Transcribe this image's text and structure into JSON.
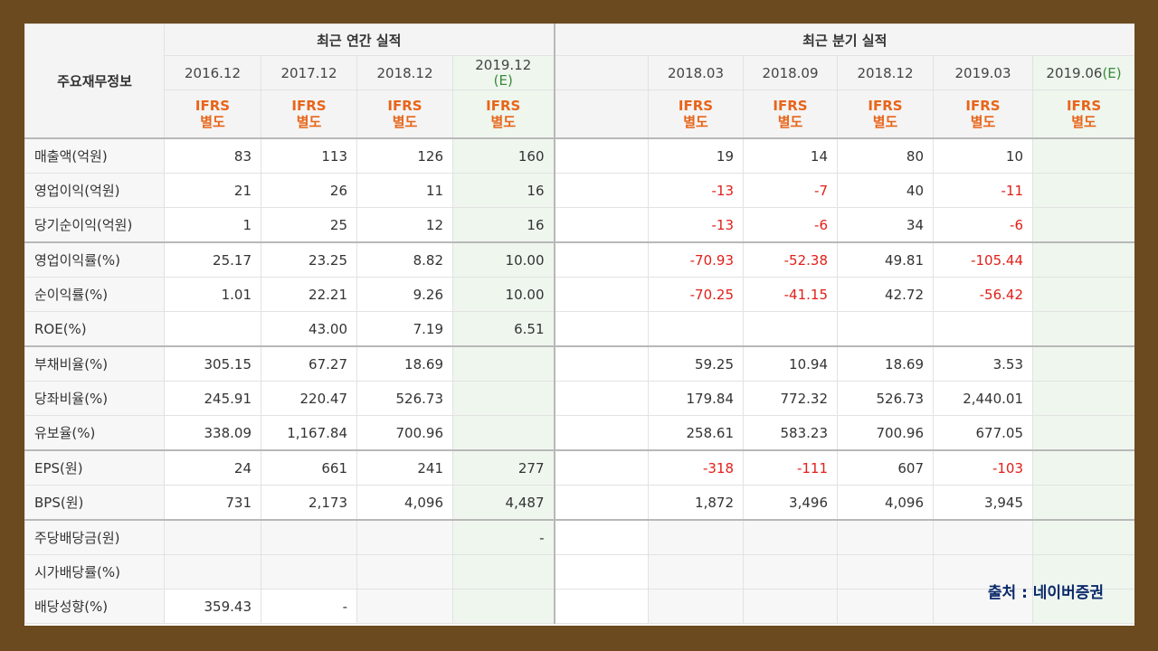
{
  "corner_label": "주요재무정보",
  "annual_group_label": "최근 연간 실적",
  "quarter_group_label": "최근 분기 실적",
  "annual_dates": [
    "2016.12",
    "2017.12",
    "2018.12",
    "2019.12"
  ],
  "annual_estimate_tag": "(E)",
  "quarter_dates": [
    "2018.03",
    "2018.09",
    "2018.12",
    "2019.03",
    "2019.06"
  ],
  "quarter_estimate_tag": "(E)",
  "ifrs_line1": "IFRS",
  "ifrs_line2": "별도",
  "rows": [
    {
      "label": "매출액(억원)",
      "annual": [
        "83",
        "113",
        "126",
        "160"
      ],
      "quarter": [
        "19",
        "14",
        "80",
        "10",
        ""
      ]
    },
    {
      "label": "영업이익(억원)",
      "annual": [
        "21",
        "26",
        "11",
        "16"
      ],
      "quarter": [
        "-13",
        "-7",
        "40",
        "-11",
        ""
      ]
    },
    {
      "label": "당기순이익(억원)",
      "annual": [
        "1",
        "25",
        "12",
        "16"
      ],
      "quarter": [
        "-13",
        "-6",
        "34",
        "-6",
        ""
      ]
    },
    {
      "label": "영업이익률(%)",
      "annual": [
        "25.17",
        "23.25",
        "8.82",
        "10.00"
      ],
      "quarter": [
        "-70.93",
        "-52.38",
        "49.81",
        "-105.44",
        ""
      ]
    },
    {
      "label": "순이익률(%)",
      "annual": [
        "1.01",
        "22.21",
        "9.26",
        "10.00"
      ],
      "quarter": [
        "-70.25",
        "-41.15",
        "42.72",
        "-56.42",
        ""
      ]
    },
    {
      "label": "ROE(%)",
      "annual": [
        "",
        "43.00",
        "7.19",
        "6.51"
      ],
      "quarter": [
        "",
        "",
        "",
        "",
        ""
      ]
    },
    {
      "label": "부채비율(%)",
      "annual": [
        "305.15",
        "67.27",
        "18.69",
        ""
      ],
      "quarter": [
        "59.25",
        "10.94",
        "18.69",
        "3.53",
        ""
      ]
    },
    {
      "label": "당좌비율(%)",
      "annual": [
        "245.91",
        "220.47",
        "526.73",
        ""
      ],
      "quarter": [
        "179.84",
        "772.32",
        "526.73",
        "2,440.01",
        ""
      ]
    },
    {
      "label": "유보율(%)",
      "annual": [
        "338.09",
        "1,167.84",
        "700.96",
        ""
      ],
      "quarter": [
        "258.61",
        "583.23",
        "700.96",
        "677.05",
        ""
      ]
    },
    {
      "label": "EPS(원)",
      "annual": [
        "24",
        "661",
        "241",
        "277"
      ],
      "quarter": [
        "-318",
        "-111",
        "607",
        "-103",
        ""
      ]
    },
    {
      "label": "BPS(원)",
      "annual": [
        "731",
        "2,173",
        "4,096",
        "4,487"
      ],
      "quarter": [
        "1,872",
        "3,496",
        "4,096",
        "3,945",
        ""
      ]
    },
    {
      "label": "주당배당금(원)",
      "annual": [
        "",
        "",
        "",
        "-"
      ],
      "quarter": [
        "",
        "",
        "",
        "",
        ""
      ]
    },
    {
      "label": "시가배당률(%)",
      "annual": [
        "",
        "",
        "",
        ""
      ],
      "quarter": [
        "",
        "",
        "",
        "",
        ""
      ]
    },
    {
      "label": "배당성향(%)",
      "annual": [
        "359.43",
        "-",
        "",
        ""
      ],
      "quarter": [
        "",
        "",
        "",
        "",
        ""
      ]
    }
  ],
  "source_caption": "출처 : 네이버증권",
  "colors": {
    "negative": "#e0201a",
    "ifrs": "#e8651a",
    "estimate_bg": "#eef6ee",
    "frame": "#6b4a1f"
  }
}
